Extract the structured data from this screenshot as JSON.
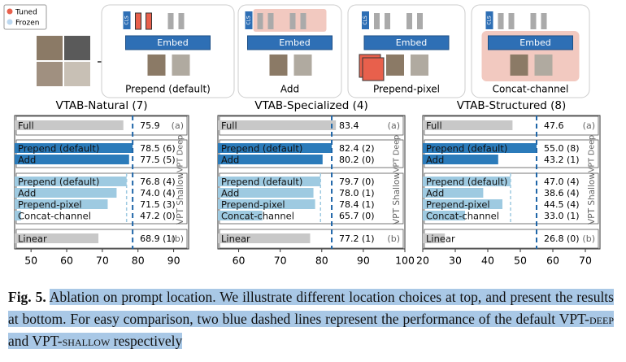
{
  "diagram": {
    "legend": [
      "Tuned",
      "Frozen"
    ],
    "panels": [
      {
        "label": "Prepend (default)",
        "embed": "Embed",
        "cls": "CLS"
      },
      {
        "label": "Add",
        "embed": "Embed",
        "cls": "CLS"
      },
      {
        "label": "Prepend-pixel",
        "embed": "Embed",
        "cls": "CLS"
      },
      {
        "label": "Concat-channel",
        "embed": "Embed",
        "cls": "CLS"
      }
    ]
  },
  "chart_data": [
    {
      "type": "bar",
      "orientation": "horizontal",
      "title": "VTAB-Natural (7)",
      "categories": [
        "Full",
        "Prepend (default)",
        "Add",
        "Prepend (default)",
        "Add",
        "Prepend-pixel",
        "Concat-channel",
        "Linear"
      ],
      "values": [
        75.9,
        78.5,
        77.5,
        76.8,
        74.0,
        71.5,
        47.2,
        68.9
      ],
      "value_labels": [
        "75.9",
        "78.5 (6)",
        "77.5 (5)",
        "76.8 (4)",
        "74.0 (4)",
        "71.5 (3)",
        "47.2 (0)",
        "68.9 (1)"
      ],
      "colors": [
        "#c8c8c8",
        "#2b7bba",
        "#2b7bba",
        "#9ecae1",
        "#9ecae1",
        "#9ecae1",
        "#9ecae1",
        "#c8c8c8"
      ],
      "group_labels": [
        "VPT Deep",
        "VPT Shallow"
      ],
      "annotations": [
        "(a)",
        "(b)"
      ],
      "xlim": [
        45.4,
        94.2
      ],
      "xticks": [
        50,
        60,
        70,
        80,
        90
      ]
    },
    {
      "type": "bar",
      "orientation": "horizontal",
      "title": "VTAB-Specialized (4)",
      "categories": [
        "Full",
        "Prepend (default)",
        "Add",
        "Prepend (default)",
        "Add",
        "Prepend-pixel",
        "Concat-channel",
        "Linear"
      ],
      "values": [
        83.4,
        82.4,
        80.2,
        79.7,
        78.0,
        78.4,
        65.7,
        77.2
      ],
      "value_labels": [
        "83.4",
        "82.4 (2)",
        "80.2 (0)",
        "79.7 (0)",
        "78.0 (1)",
        "78.4 (1)",
        "65.7 (0)",
        "77.2 (1)"
      ],
      "colors": [
        "#c8c8c8",
        "#2b7bba",
        "#2b7bba",
        "#9ecae1",
        "#9ecae1",
        "#9ecae1",
        "#9ecae1",
        "#c8c8c8"
      ],
      "group_labels": [
        "VPT Deep",
        "VPT Shallow"
      ],
      "annotations": [
        "(a)",
        "(b)"
      ],
      "xlim": [
        55,
        100
      ],
      "xticks": [
        60,
        70,
        80,
        90,
        100
      ]
    },
    {
      "type": "bar",
      "orientation": "horizontal",
      "title": "VTAB-Structured (8)",
      "categories": [
        "Full",
        "Prepend (default)",
        "Add",
        "Prepend (default)",
        "Add",
        "Prepend-pixel",
        "Concat-channel",
        "Linear"
      ],
      "values": [
        47.6,
        55.0,
        43.2,
        47.0,
        38.6,
        44.5,
        33.0,
        26.8
      ],
      "value_labels": [
        "47.6",
        "55.0 (8)",
        "43.2 (1)",
        "47.0 (4)",
        "38.6 (4)",
        "44.5 (4)",
        "33.0 (1)",
        "26.8 (0)"
      ],
      "colors": [
        "#c8c8c8",
        "#2b7bba",
        "#2b7bba",
        "#9ecae1",
        "#9ecae1",
        "#9ecae1",
        "#9ecae1",
        "#c8c8c8"
      ],
      "group_labels": [
        "VPT Deep",
        "VPT Shallow"
      ],
      "annotations": [
        "(a)",
        "(b)"
      ],
      "xlim": [
        20,
        74.5
      ],
      "xticks": [
        20,
        30,
        40,
        50,
        60,
        70
      ]
    }
  ],
  "caption": {
    "label": "Fig. 5.",
    "parts": [
      "Ablation on prompt location. We illustrate different location choices at top, and present the results at bottom. For easy comparison, two blue dashed lines represent the performance of the default VPT-",
      "deep",
      " and VPT-",
      "shallow",
      " respectively"
    ]
  }
}
